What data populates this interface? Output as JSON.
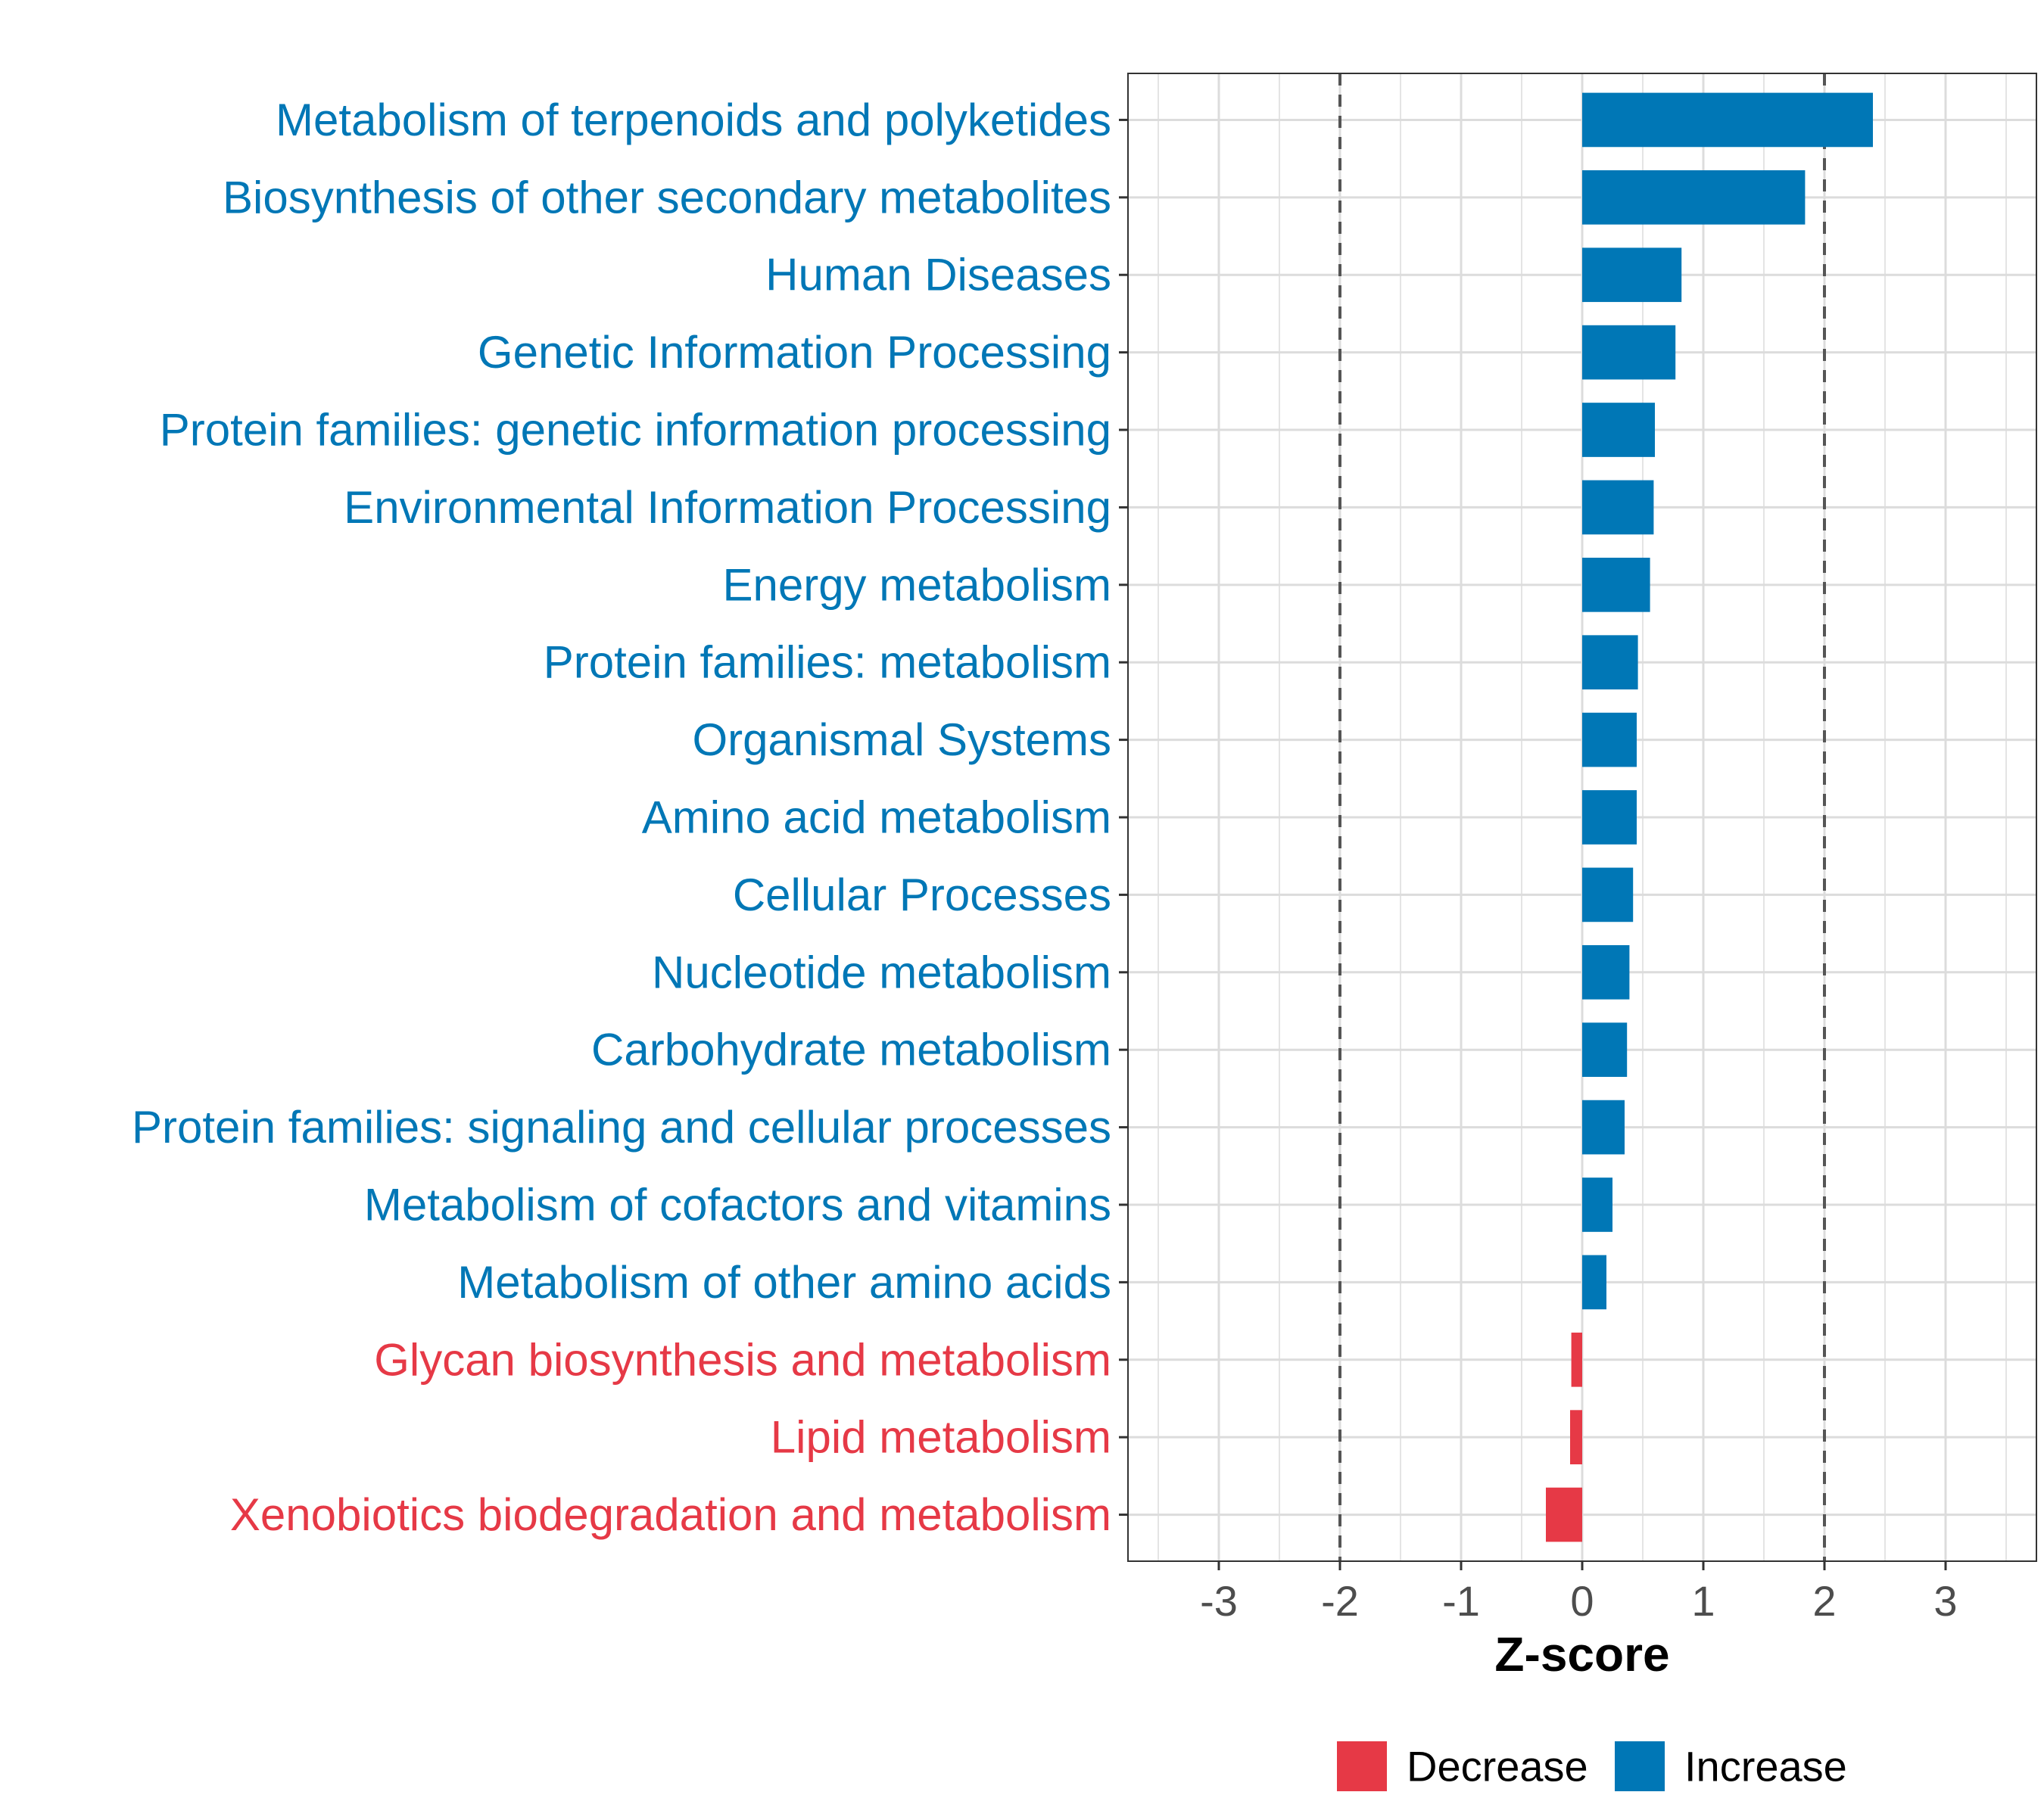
{
  "chart_data": {
    "type": "bar",
    "orientation": "horizontal",
    "title": "",
    "xlabel": "Z-score",
    "ylabel": "",
    "xlim": [
      -3.75,
      3.75
    ],
    "x_ticks": [
      -3,
      -2,
      -1,
      0,
      1,
      2,
      3
    ],
    "x_tick_labels": [
      "-3",
      "-2",
      "-1",
      "0",
      "1",
      "2",
      "3"
    ],
    "reference_lines": [
      -2,
      2
    ],
    "grid": true,
    "legend_position": "bottom",
    "series": [
      {
        "name": "Decrease",
        "color": "#e63946"
      },
      {
        "name": "Increase",
        "color": "#0077b6"
      }
    ],
    "categories": [
      {
        "label": "Metabolism of terpenoids and polyketides",
        "value": 2.4,
        "group": "Increase"
      },
      {
        "label": "Biosynthesis of other secondary metabolites",
        "value": 1.84,
        "group": "Increase"
      },
      {
        "label": "Human Diseases",
        "value": 0.82,
        "group": "Increase"
      },
      {
        "label": "Genetic Information Processing",
        "value": 0.77,
        "group": "Increase"
      },
      {
        "label": "Protein families: genetic information processing",
        "value": 0.6,
        "group": "Increase"
      },
      {
        "label": "Environmental Information Processing",
        "value": 0.59,
        "group": "Increase"
      },
      {
        "label": "Energy metabolism",
        "value": 0.56,
        "group": "Increase"
      },
      {
        "label": "Protein families: metabolism",
        "value": 0.46,
        "group": "Increase"
      },
      {
        "label": "Organismal Systems",
        "value": 0.45,
        "group": "Increase"
      },
      {
        "label": "Amino acid metabolism",
        "value": 0.45,
        "group": "Increase"
      },
      {
        "label": "Cellular Processes",
        "value": 0.42,
        "group": "Increase"
      },
      {
        "label": "Nucleotide metabolism",
        "value": 0.39,
        "group": "Increase"
      },
      {
        "label": "Carbohydrate metabolism",
        "value": 0.37,
        "group": "Increase"
      },
      {
        "label": "Protein families: signaling and cellular processes",
        "value": 0.35,
        "group": "Increase"
      },
      {
        "label": "Metabolism of cofactors and vitamins",
        "value": 0.25,
        "group": "Increase"
      },
      {
        "label": "Metabolism of other amino acids",
        "value": 0.2,
        "group": "Increase"
      },
      {
        "label": "Glycan biosynthesis and metabolism",
        "value": -0.09,
        "group": "Decrease"
      },
      {
        "label": "Lipid metabolism",
        "value": -0.1,
        "group": "Decrease"
      },
      {
        "label": "Xenobiotics biodegradation and metabolism",
        "value": -0.3,
        "group": "Decrease"
      }
    ]
  }
}
